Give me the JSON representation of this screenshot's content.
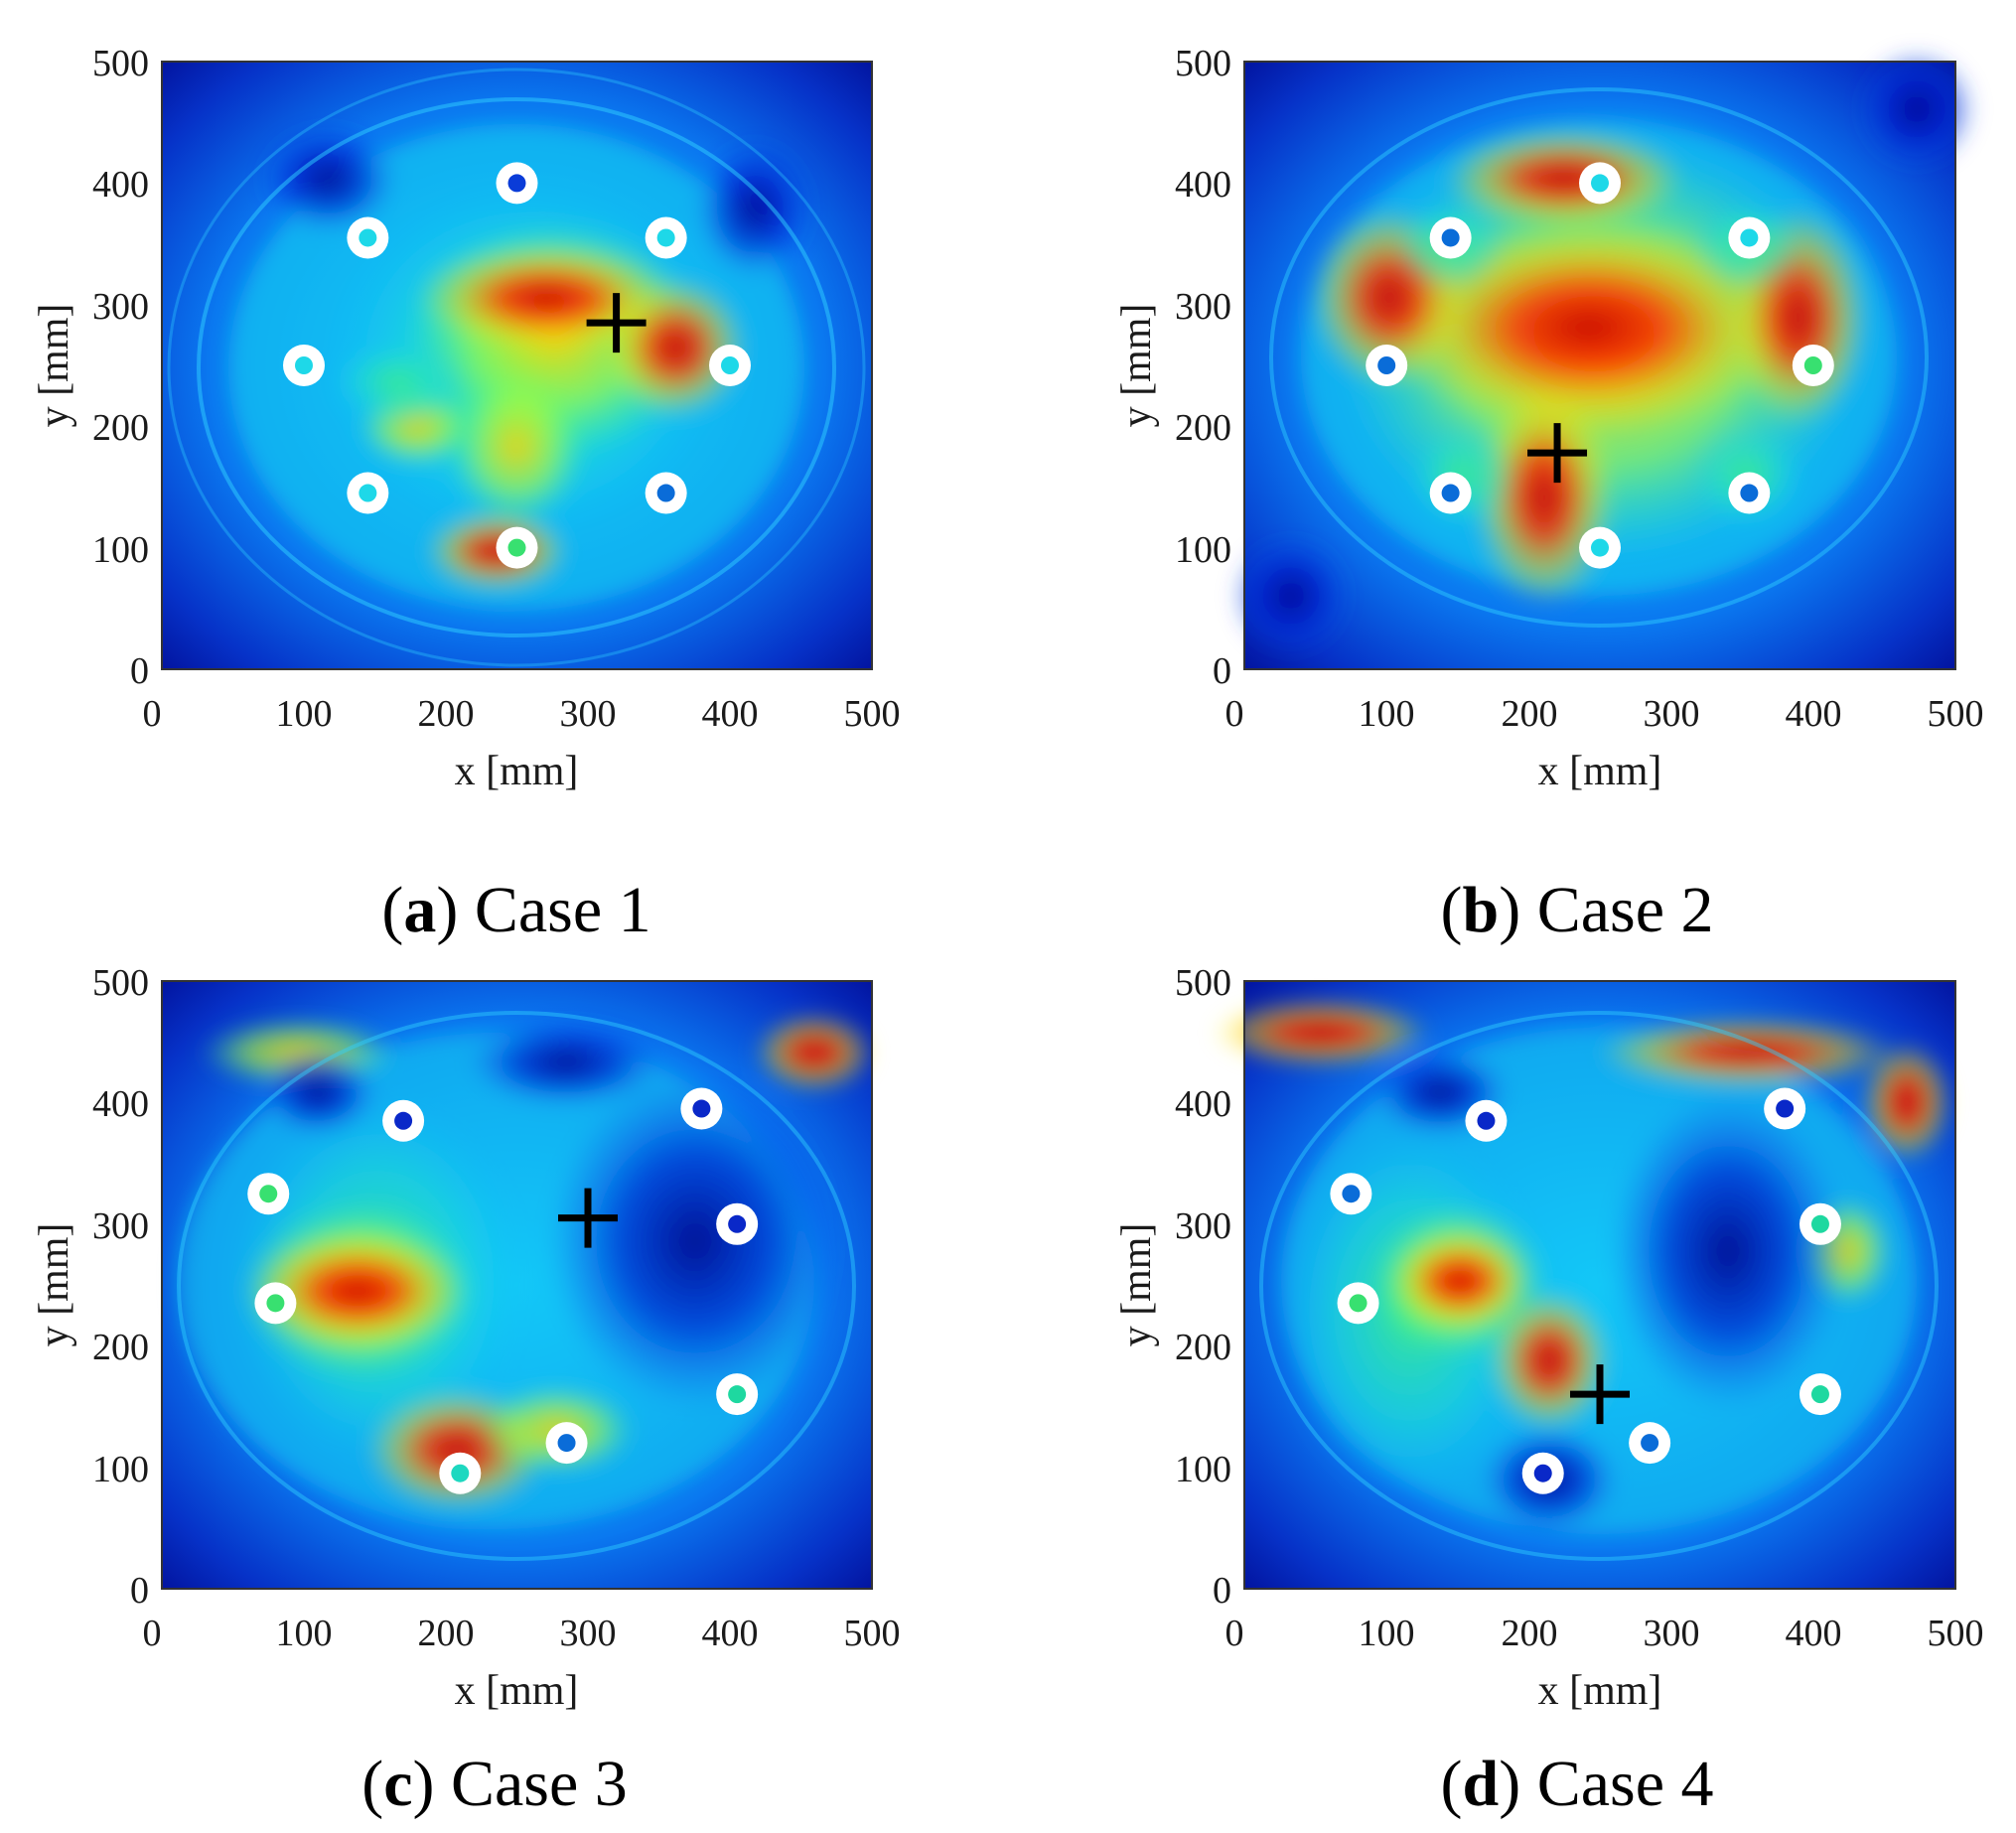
{
  "chart_data": [
    {
      "type": "heatmap",
      "panel": "a",
      "caption_letter": "a",
      "caption_text": "Case 1",
      "xlabel": "x [mm]",
      "ylabel": "y [mm]",
      "xlim": [
        0,
        500
      ],
      "ylim": [
        0,
        500
      ],
      "xticks": [
        "0",
        "100",
        "200",
        "300",
        "400",
        "500"
      ],
      "yticks": [
        "0",
        "100",
        "200",
        "300",
        "400",
        "500"
      ],
      "colormap": "jet",
      "sensors": [
        {
          "x": 250,
          "y": 400,
          "center": "#0a3cd8"
        },
        {
          "x": 145,
          "y": 355,
          "center": "#1ed8e8"
        },
        {
          "x": 355,
          "y": 355,
          "center": "#1ed8e8"
        },
        {
          "x": 100,
          "y": 250,
          "center": "#1ed8e8"
        },
        {
          "x": 400,
          "y": 250,
          "center": "#1ed8e8"
        },
        {
          "x": 145,
          "y": 145,
          "center": "#1ed8e8"
        },
        {
          "x": 355,
          "y": 145,
          "center": "#0a6cd8"
        },
        {
          "x": 250,
          "y": 100,
          "center": "#38e070"
        }
      ],
      "source_marker": {
        "x": 320,
        "y": 285
      }
    },
    {
      "type": "heatmap",
      "panel": "b",
      "caption_letter": "b",
      "caption_text": "Case 2",
      "xlabel": "x [mm]",
      "ylabel": "y [mm]",
      "xlim": [
        0,
        500
      ],
      "ylim": [
        0,
        500
      ],
      "xticks": [
        "0",
        "100",
        "200",
        "300",
        "400",
        "500"
      ],
      "yticks": [
        "0",
        "100",
        "200",
        "300",
        "400",
        "500"
      ],
      "colormap": "jet",
      "sensors": [
        {
          "x": 250,
          "y": 400,
          "center": "#1ed8e8"
        },
        {
          "x": 145,
          "y": 355,
          "center": "#0a6cd8"
        },
        {
          "x": 355,
          "y": 355,
          "center": "#1ed8e8"
        },
        {
          "x": 100,
          "y": 250,
          "center": "#0a6cd8"
        },
        {
          "x": 400,
          "y": 250,
          "center": "#38e070"
        },
        {
          "x": 145,
          "y": 145,
          "center": "#0a6cd8"
        },
        {
          "x": 355,
          "y": 145,
          "center": "#0a6cd8"
        },
        {
          "x": 250,
          "y": 100,
          "center": "#1ed8e8"
        }
      ],
      "source_marker": {
        "x": 220,
        "y": 178
      }
    },
    {
      "type": "heatmap",
      "panel": "c",
      "caption_letter": "c",
      "caption_text": "Case 3",
      "xlabel": "x [mm]",
      "ylabel": "y [mm]",
      "xlim": [
        0,
        500
      ],
      "ylim": [
        0,
        500
      ],
      "xticks": [
        "0",
        "100",
        "200",
        "300",
        "400",
        "500"
      ],
      "yticks": [
        "0",
        "100",
        "200",
        "300",
        "400",
        "500"
      ],
      "colormap": "jet",
      "sensors": [
        {
          "x": 170,
          "y": 385,
          "center": "#0a28c8"
        },
        {
          "x": 380,
          "y": 395,
          "center": "#0a28c8"
        },
        {
          "x": 75,
          "y": 325,
          "center": "#38e070"
        },
        {
          "x": 405,
          "y": 300,
          "center": "#0a28c8"
        },
        {
          "x": 80,
          "y": 235,
          "center": "#38e070"
        },
        {
          "x": 405,
          "y": 160,
          "center": "#1ed8a0"
        },
        {
          "x": 285,
          "y": 120,
          "center": "#0a6cd8"
        },
        {
          "x": 210,
          "y": 95,
          "center": "#1ed8c0"
        }
      ],
      "source_marker": {
        "x": 300,
        "y": 305
      }
    },
    {
      "type": "heatmap",
      "panel": "d",
      "caption_letter": "d",
      "caption_text": "Case 4",
      "xlabel": "x [mm]",
      "ylabel": "y [mm]",
      "xlim": [
        0,
        500
      ],
      "ylim": [
        0,
        500
      ],
      "xticks": [
        "0",
        "100",
        "200",
        "300",
        "400",
        "500"
      ],
      "yticks": [
        "0",
        "100",
        "200",
        "300",
        "400",
        "500"
      ],
      "colormap": "jet",
      "sensors": [
        {
          "x": 170,
          "y": 385,
          "center": "#0a28c8"
        },
        {
          "x": 380,
          "y": 395,
          "center": "#0a28c8"
        },
        {
          "x": 75,
          "y": 325,
          "center": "#0a6cd8"
        },
        {
          "x": 405,
          "y": 300,
          "center": "#1ed8a0"
        },
        {
          "x": 80,
          "y": 235,
          "center": "#38e070"
        },
        {
          "x": 405,
          "y": 160,
          "center": "#1ed8a0"
        },
        {
          "x": 285,
          "y": 120,
          "center": "#0a6cd8"
        },
        {
          "x": 210,
          "y": 95,
          "center": "#0a28c8"
        }
      ],
      "source_marker": {
        "x": 250,
        "y": 160
      }
    }
  ]
}
